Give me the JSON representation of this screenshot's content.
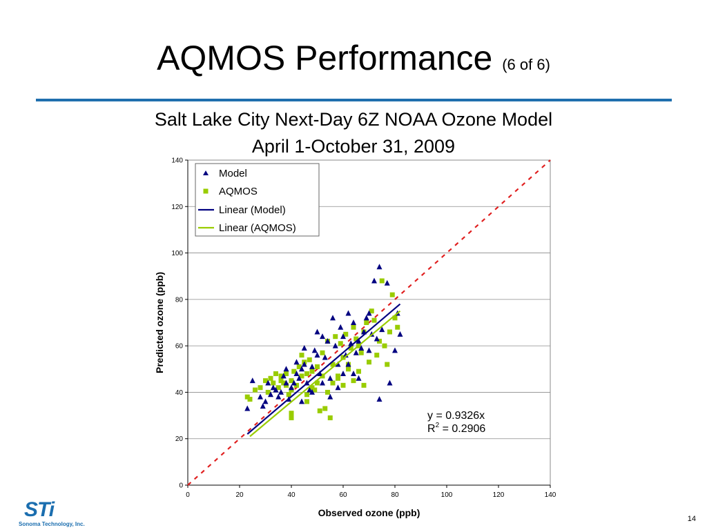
{
  "slide": {
    "title": "AQMOS Performance",
    "title_sub": "(6 of 6)",
    "page_number": "14",
    "rule_color": "#1f6fae"
  },
  "logo": {
    "text": "STi",
    "subtext": "Sonoma Technology, Inc.",
    "color": "#1b6eaf"
  },
  "chart_data": {
    "type": "scatter",
    "title_line1": "Salt Lake City Next-Day 6Z NOAA Ozone Model",
    "title_line2": "April 1-October 31, 2009",
    "xlabel": "Observed ozone (ppb)",
    "ylabel": "Predicted ozone (ppb)",
    "xlim": [
      0,
      140
    ],
    "ylim": [
      0,
      140
    ],
    "xticks": [
      0,
      20,
      40,
      60,
      80,
      100,
      120,
      140
    ],
    "yticks": [
      0,
      20,
      40,
      60,
      80,
      100,
      120,
      140
    ],
    "grid": "horizontal",
    "legend_position": "top-left",
    "legend": [
      "Model",
      "AQMOS",
      "Linear (Model)",
      "Linear (AQMOS)"
    ],
    "colors": {
      "model": "#000080",
      "aqmos": "#99cc00",
      "one_to_one": "#e02020"
    },
    "annotation": {
      "equation": "y = 0.9326x",
      "r2_prefix": "R",
      "r2_sup": "2",
      "r2_value": " = 0.2906"
    },
    "series": [
      {
        "name": "Model",
        "marker": "triangle",
        "points": [
          [
            23,
            33
          ],
          [
            25,
            45
          ],
          [
            28,
            38
          ],
          [
            29,
            34
          ],
          [
            30,
            36
          ],
          [
            31,
            44
          ],
          [
            32,
            39
          ],
          [
            33,
            42
          ],
          [
            34,
            41
          ],
          [
            35,
            38
          ],
          [
            36,
            40
          ],
          [
            37,
            47
          ],
          [
            38,
            44
          ],
          [
            39,
            37
          ],
          [
            40,
            42
          ],
          [
            41,
            44
          ],
          [
            42,
            48
          ],
          [
            43,
            46
          ],
          [
            44,
            50
          ],
          [
            45,
            52
          ],
          [
            45,
            59
          ],
          [
            46,
            44
          ],
          [
            47,
            41
          ],
          [
            48,
            51
          ],
          [
            49,
            58
          ],
          [
            50,
            66
          ],
          [
            51,
            48
          ],
          [
            52,
            64
          ],
          [
            53,
            55
          ],
          [
            54,
            62
          ],
          [
            55,
            46
          ],
          [
            56,
            72
          ],
          [
            57,
            60
          ],
          [
            58,
            52
          ],
          [
            59,
            68
          ],
          [
            60,
            64
          ],
          [
            61,
            56
          ],
          [
            62,
            74
          ],
          [
            63,
            61
          ],
          [
            64,
            70
          ],
          [
            65,
            57
          ],
          [
            66,
            62
          ],
          [
            67,
            59
          ],
          [
            68,
            66
          ],
          [
            69,
            72
          ],
          [
            70,
            74
          ],
          [
            71,
            65
          ],
          [
            72,
            88
          ],
          [
            73,
            63
          ],
          [
            74,
            94
          ],
          [
            74,
            37
          ],
          [
            75,
            67
          ],
          [
            77,
            87
          ],
          [
            78,
            44
          ],
          [
            80,
            58
          ],
          [
            81,
            74
          ],
          [
            82,
            65
          ],
          [
            52,
            44
          ],
          [
            48,
            40
          ],
          [
            55,
            38
          ],
          [
            60,
            48
          ],
          [
            62,
            52
          ],
          [
            66,
            46
          ],
          [
            70,
            58
          ],
          [
            44,
            36
          ],
          [
            38,
            50
          ],
          [
            58,
            42
          ],
          [
            64,
            48
          ],
          [
            50,
            56
          ],
          [
            42,
            53
          ]
        ]
      },
      {
        "name": "AQMOS",
        "marker": "square",
        "points": [
          [
            23,
            38
          ],
          [
            24,
            37
          ],
          [
            26,
            41
          ],
          [
            28,
            42
          ],
          [
            30,
            45
          ],
          [
            31,
            40
          ],
          [
            32,
            46
          ],
          [
            33,
            44
          ],
          [
            34,
            48
          ],
          [
            35,
            42
          ],
          [
            36,
            47
          ],
          [
            37,
            44
          ],
          [
            38,
            48
          ],
          [
            39,
            39
          ],
          [
            40,
            45
          ],
          [
            40,
            31
          ],
          [
            40,
            29
          ],
          [
            41,
            49
          ],
          [
            42,
            43
          ],
          [
            43,
            51
          ],
          [
            44,
            47
          ],
          [
            45,
            53
          ],
          [
            46,
            36
          ],
          [
            47,
            54
          ],
          [
            48,
            49
          ],
          [
            49,
            41
          ],
          [
            50,
            44
          ],
          [
            51,
            32
          ],
          [
            52,
            57
          ],
          [
            53,
            33
          ],
          [
            54,
            62
          ],
          [
            55,
            29
          ],
          [
            56,
            52
          ],
          [
            57,
            64
          ],
          [
            58,
            46
          ],
          [
            59,
            61
          ],
          [
            60,
            55
          ],
          [
            61,
            65
          ],
          [
            62,
            50
          ],
          [
            63,
            59
          ],
          [
            64,
            68
          ],
          [
            65,
            63
          ],
          [
            66,
            60
          ],
          [
            67,
            57
          ],
          [
            68,
            66
          ],
          [
            69,
            70
          ],
          [
            70,
            53
          ],
          [
            71,
            75
          ],
          [
            72,
            71
          ],
          [
            73,
            56
          ],
          [
            74,
            62
          ],
          [
            75,
            88
          ],
          [
            76,
            60
          ],
          [
            77,
            52
          ],
          [
            78,
            66
          ],
          [
            79,
            82
          ],
          [
            80,
            72
          ],
          [
            81,
            68
          ],
          [
            46,
            48
          ],
          [
            48,
            42
          ],
          [
            50,
            51
          ],
          [
            52,
            47
          ],
          [
            54,
            40
          ],
          [
            56,
            44
          ],
          [
            58,
            47
          ],
          [
            60,
            43
          ],
          [
            62,
            52
          ],
          [
            64,
            45
          ],
          [
            66,
            49
          ],
          [
            68,
            43
          ],
          [
            44,
            56
          ],
          [
            46,
            39
          ],
          [
            40,
            41
          ],
          [
            38,
            43
          ],
          [
            36,
            45
          ]
        ]
      }
    ],
    "fits": [
      {
        "name": "Linear (Model)",
        "x": [
          23,
          82
        ],
        "y": [
          22,
          78
        ]
      },
      {
        "name": "Linear (AQMOS)",
        "x": [
          24,
          82
        ],
        "y": [
          21,
          75
        ]
      }
    ]
  }
}
